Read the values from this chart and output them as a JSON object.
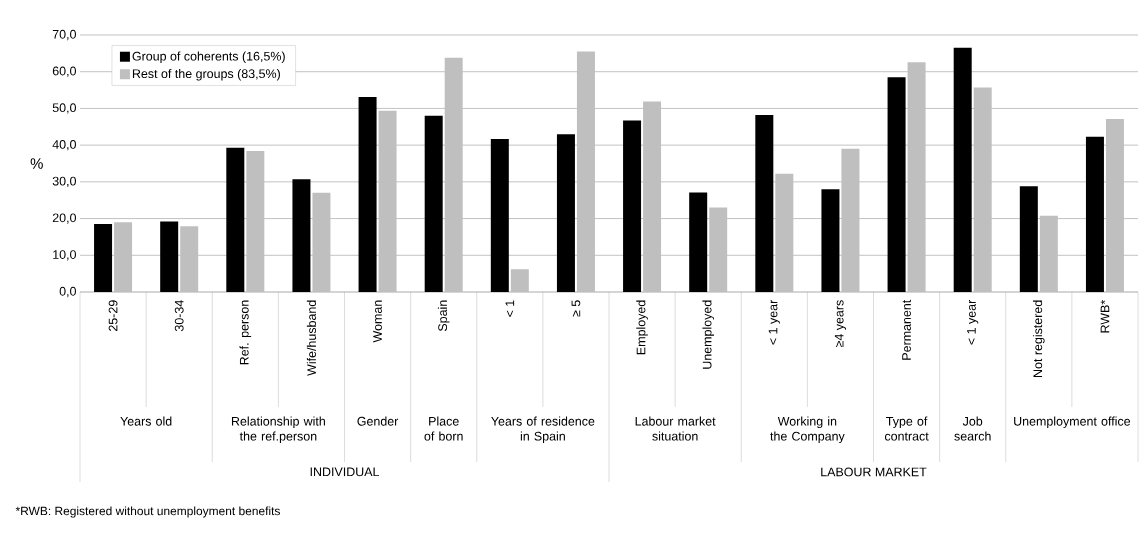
{
  "chart_data": {
    "type": "bar",
    "categories": [
      "25-29",
      "30-34",
      "Ref. person",
      "Wife/husband",
      "Woman",
      "Spain",
      "< 1",
      "≥ 5",
      "Employed",
      "Unemployed",
      "< 1 year",
      "≥4 years",
      "Permanent",
      "< 1 year",
      "Not registered",
      "RWB*"
    ],
    "series": [
      {
        "name": "Group of coherents (16,5%)",
        "color": "#000000",
        "values": [
          18.5,
          19.2,
          39.3,
          30.7,
          53.1,
          48.0,
          41.7,
          43.0,
          46.7,
          27.1,
          48.2,
          28.0,
          58.5,
          66.5,
          28.8,
          42.3
        ]
      },
      {
        "name": "Rest of the groups (83,5%)",
        "color": "#bfbfbf",
        "values": [
          19.0,
          17.9,
          38.4,
          27.0,
          49.4,
          63.8,
          6.2,
          65.5,
          51.9,
          23.0,
          32.2,
          39.0,
          62.6,
          55.7,
          20.8,
          47.1
        ]
      }
    ],
    "ylabel": "%",
    "ylim": [
      0,
      70
    ],
    "yticks": [
      {
        "value": 0,
        "label": "0,0"
      },
      {
        "value": 10,
        "label": "10,0"
      },
      {
        "value": 20,
        "label": "20,0"
      },
      {
        "value": 30,
        "label": "30,0"
      },
      {
        "value": 40,
        "label": "40,0"
      },
      {
        "value": 50,
        "label": "50,0"
      },
      {
        "value": 60,
        "label": "60,0"
      },
      {
        "value": 70,
        "label": "70,0"
      }
    ],
    "grid": "y",
    "legend": "top left",
    "annotations": [
      "Years old",
      "Relationship with the ref.person",
      "Gender",
      "Place of born",
      "Years of residence in Spain",
      "Labour market situation",
      "Working in the Company",
      "Type of contract",
      "Job search",
      "Unemployment office",
      "INDIVIDUAL",
      "LABOUR MARKET",
      "*RWB: Registered without unemployment benefits"
    ]
  }
}
